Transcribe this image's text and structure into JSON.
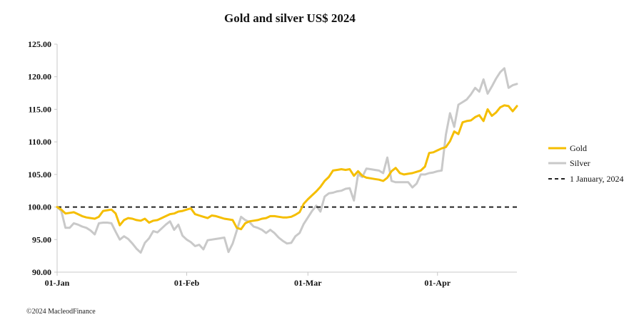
{
  "chart_data": {
    "type": "line",
    "title": "Gold and silver  US$ 2024",
    "xlabel": "",
    "ylabel": "",
    "ylim": [
      90,
      125
    ],
    "y_ticks": [
      "90.00",
      "95.00",
      "100.00",
      "105.00",
      "110.00",
      "115.00",
      "120.00",
      "125.00"
    ],
    "x_ticks": [
      "01-Jan",
      "01-Feb",
      "01-Mar",
      "01-Apr"
    ],
    "x_tick_days": [
      0,
      31,
      60,
      91
    ],
    "xlim_days": [
      0,
      110
    ],
    "legend_position": "right",
    "credit": "©2024 MacleodFinance",
    "series": [
      {
        "name": "Gold",
        "color": "#F5BE00",
        "style": "solid",
        "x_days": [
          0,
          1,
          2,
          3,
          4,
          5,
          6,
          7,
          8,
          9,
          10,
          11,
          12,
          13,
          14,
          15,
          16,
          17,
          18,
          19,
          20,
          21,
          22,
          23,
          24,
          25,
          26,
          27,
          28,
          29,
          30,
          31,
          32,
          33,
          34,
          35,
          36,
          37,
          38,
          39,
          40,
          41,
          42,
          43,
          44,
          45,
          46,
          47,
          48,
          49,
          50,
          51,
          52,
          53,
          54,
          55,
          56,
          57,
          58,
          59,
          60,
          61,
          62,
          63,
          64,
          65,
          66,
          67,
          68,
          69,
          70,
          71,
          72,
          73,
          74,
          75,
          76,
          77,
          78,
          79,
          80,
          81,
          82,
          83,
          84,
          85,
          86,
          87,
          88,
          89,
          90,
          91,
          92,
          93,
          94,
          95,
          96,
          97,
          98,
          99,
          100,
          101,
          102,
          103,
          104,
          105,
          106,
          107,
          108,
          109,
          110
        ],
        "values": [
          100.0,
          99.6,
          99.0,
          99.1,
          99.2,
          98.9,
          98.6,
          98.4,
          98.3,
          98.2,
          98.5,
          99.4,
          99.5,
          99.6,
          99.0,
          97.2,
          98.0,
          98.3,
          98.2,
          98.0,
          97.9,
          98.2,
          97.6,
          97.9,
          98.0,
          98.3,
          98.6,
          98.9,
          99.0,
          99.3,
          99.4,
          99.6,
          99.8,
          98.9,
          98.7,
          98.5,
          98.3,
          98.7,
          98.6,
          98.4,
          98.2,
          98.1,
          98.0,
          96.8,
          96.6,
          97.5,
          97.8,
          97.9,
          98.0,
          98.2,
          98.3,
          98.6,
          98.6,
          98.5,
          98.4,
          98.4,
          98.5,
          98.8,
          99.2,
          100.5,
          101.2,
          101.8,
          102.4,
          103.1,
          104.0,
          104.6,
          105.6,
          105.7,
          105.8,
          105.7,
          105.8,
          104.8,
          105.5,
          104.8,
          104.5,
          104.4,
          104.3,
          104.2,
          104.0,
          104.5,
          105.5,
          106.0,
          105.2,
          105.0,
          105.1,
          105.2,
          105.4,
          105.6,
          106.2,
          108.3,
          108.4,
          108.7,
          109.0,
          109.2,
          110.1,
          111.6,
          111.2,
          113.0,
          113.2,
          113.3,
          113.8,
          114.1,
          113.2,
          115.0,
          114.0,
          114.5,
          115.3,
          115.6,
          115.5,
          114.7,
          115.5
        ]
      },
      {
        "name": "Silver",
        "color": "#C9C9C9",
        "style": "solid",
        "x_days": [
          0,
          1,
          2,
          3,
          4,
          5,
          6,
          7,
          8,
          9,
          10,
          11,
          12,
          13,
          14,
          15,
          16,
          17,
          18,
          19,
          20,
          21,
          22,
          23,
          24,
          25,
          26,
          27,
          28,
          29,
          30,
          31,
          32,
          33,
          34,
          35,
          36,
          37,
          38,
          39,
          40,
          41,
          42,
          43,
          44,
          45,
          46,
          47,
          48,
          49,
          50,
          51,
          52,
          53,
          54,
          55,
          56,
          57,
          58,
          59,
          60,
          61,
          62,
          63,
          64,
          65,
          66,
          67,
          68,
          69,
          70,
          71,
          72,
          73,
          74,
          75,
          76,
          77,
          78,
          79,
          80,
          81,
          82,
          83,
          84,
          85,
          86,
          87,
          88,
          89,
          90,
          91,
          92,
          93,
          94,
          95,
          96,
          97,
          98,
          99,
          100,
          101,
          102,
          103,
          104,
          105,
          106,
          107,
          108,
          109,
          110
        ],
        "values": [
          100.0,
          99.4,
          96.8,
          96.8,
          97.5,
          97.3,
          97.0,
          96.8,
          96.4,
          95.8,
          97.5,
          97.6,
          97.6,
          97.5,
          96.2,
          95.0,
          95.5,
          95.1,
          94.4,
          93.6,
          93.0,
          94.5,
          95.2,
          96.3,
          96.1,
          96.7,
          97.3,
          97.8,
          96.5,
          97.3,
          95.6,
          95.0,
          94.6,
          94.0,
          94.2,
          93.5,
          94.9,
          95.0,
          95.1,
          95.2,
          95.3,
          93.1,
          94.4,
          96.4,
          98.5,
          98.0,
          97.7,
          97.0,
          96.8,
          96.5,
          96.0,
          96.5,
          96.0,
          95.3,
          94.8,
          94.4,
          94.5,
          95.5,
          96.0,
          97.4,
          98.4,
          99.4,
          100.2,
          99.3,
          101.6,
          102.1,
          102.2,
          102.4,
          102.5,
          102.8,
          102.9,
          101.0,
          105.0,
          104.6,
          105.9,
          105.8,
          105.7,
          105.6,
          105.2,
          107.6,
          104.0,
          103.8,
          103.8,
          103.8,
          103.8,
          103.0,
          103.6,
          105.0,
          105.0,
          105.2,
          105.3,
          105.5,
          105.6,
          111.1,
          114.4,
          112.3,
          115.7,
          116.1,
          116.5,
          117.3,
          118.3,
          117.7,
          119.6,
          117.4,
          118.5,
          119.7,
          120.7,
          121.3,
          118.3,
          118.7,
          118.9
        ]
      },
      {
        "name": "1 January, 2024",
        "color": "#222222",
        "style": "dashed",
        "x_days": [
          0,
          110
        ],
        "values": [
          100,
          100
        ]
      }
    ]
  }
}
